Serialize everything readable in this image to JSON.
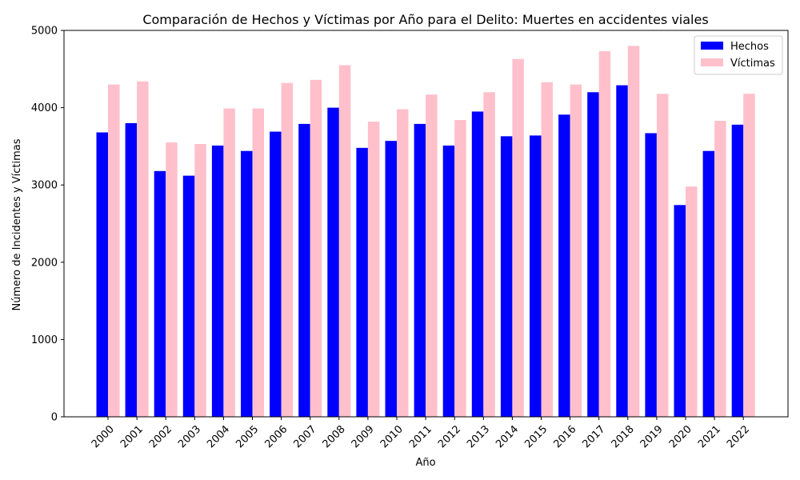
{
  "chart_data": {
    "type": "bar",
    "title": "Comparación de Hechos y Víctimas por Año para el Delito: Muertes en accidentes viales",
    "xlabel": "Año",
    "ylabel": "Número de Incidentes y Víctimas",
    "ylim": [
      0,
      5000
    ],
    "yticks": [
      0,
      1000,
      2000,
      3000,
      4000,
      5000
    ],
    "categories": [
      "2000",
      "2001",
      "2002",
      "2003",
      "2004",
      "2005",
      "2006",
      "2007",
      "2008",
      "2009",
      "2010",
      "2011",
      "2012",
      "2013",
      "2014",
      "2015",
      "2016",
      "2017",
      "2018",
      "2019",
      "2020",
      "2021",
      "2022"
    ],
    "series": [
      {
        "name": "Hechos",
        "color": "#0000ff",
        "values": [
          3680,
          3800,
          3180,
          3120,
          3510,
          3440,
          3690,
          3790,
          4000,
          3480,
          3570,
          3790,
          3510,
          3950,
          3630,
          3640,
          3910,
          4200,
          4290,
          3670,
          2740,
          3440,
          3780
        ]
      },
      {
        "name": "Víctimas",
        "color": "#ffc0cb",
        "values": [
          4300,
          4340,
          3550,
          3530,
          3990,
          3990,
          4320,
          4360,
          4550,
          3820,
          3980,
          4170,
          3840,
          4200,
          4630,
          4330,
          4300,
          4730,
          4800,
          4180,
          2980,
          3830,
          4180
        ]
      }
    ],
    "legend_position": "top-right",
    "grid": false
  }
}
